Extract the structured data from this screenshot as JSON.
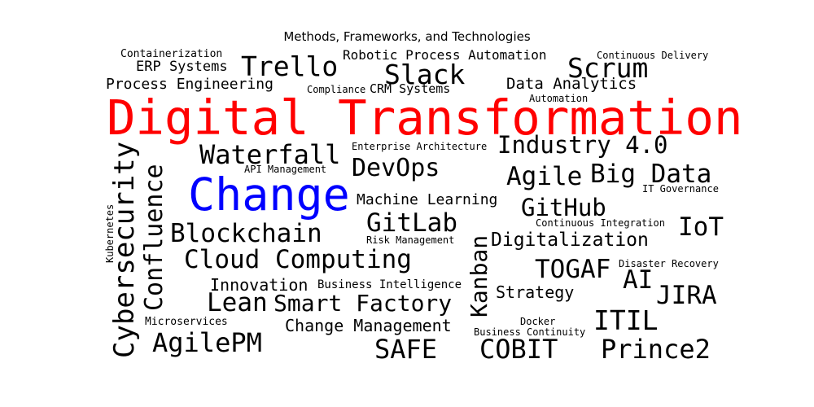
{
  "title": "Methods, Frameworks, and Technologies",
  "colors": {
    "default": "#000000",
    "highlight_red": "#ff0000",
    "highlight_blue": "#0000ff"
  },
  "words": {
    "digital_transformation": "Digital Transformation",
    "change": "Change",
    "containerization": "Containerization",
    "erp_systems": "ERP Systems",
    "trello": "Trello",
    "robotic_process_automation": "Robotic Process Automation",
    "slack": "Slack",
    "scrum": "Scrum",
    "continuous_delivery": "Continuous Delivery",
    "process_engineering": "Process Engineering",
    "compliance": "Compliance",
    "crm_systems": "CRM Systems",
    "data_analytics": "Data Analytics",
    "automation": "Automation",
    "waterfall": "Waterfall",
    "enterprise_architecture": "Enterprise Architecture",
    "industry_4": "Industry 4.0",
    "devops": "DevOps",
    "agile": "Agile",
    "big_data": "Big Data",
    "api_management": "API Management",
    "it_governance": "IT Governance",
    "machine_learning": "Machine Learning",
    "github": "GitHub",
    "gitlab": "GitLab",
    "continuous_integration": "Continuous Integration",
    "iot": "IoT",
    "blockchain": "Blockchain",
    "risk_management": "Risk Management",
    "digitalization": "Digitalization",
    "cloud_computing": "Cloud Computing",
    "togaf": "TOGAF",
    "disaster_recovery": "Disaster Recovery",
    "ai": "AI",
    "innovation": "Innovation",
    "business_intelligence": "Business Intelligence",
    "strategy": "Strategy",
    "jira": "JIRA",
    "lean": "Lean",
    "smart_factory": "Smart Factory",
    "microservices": "Microservices",
    "change_management": "Change Management",
    "docker": "Docker",
    "itil": "ITIL",
    "business_continuity": "Business Continuity",
    "agilepm": "AgilePM",
    "safe": "SAFE",
    "cobit": "COBIT",
    "prince2": "Prince2",
    "kanban": "Kanban",
    "cybersecurity": "Cybersecurity",
    "confluence": "Confluence",
    "kubernetes": "Kubernetes"
  }
}
